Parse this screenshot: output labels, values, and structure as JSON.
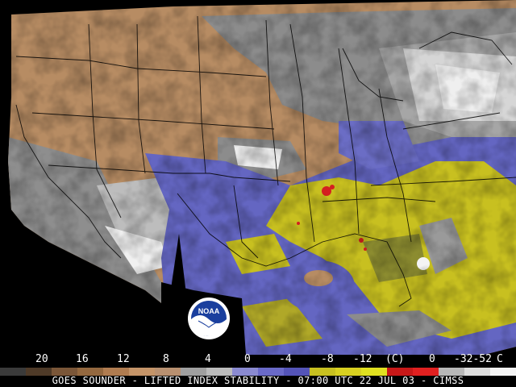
{
  "map": {
    "title": "GOES SOUNDER - LIFTED INDEX STABILITY - 07:00 UTC 22 JUL 03 - CIMSS",
    "logo_text": "NOAA",
    "colors": {
      "stable_tan": "#b78c63",
      "neutral_gray": "#8c8c8c",
      "light_gray": "#c8c8c8",
      "cloud_white": "#f0f0f0",
      "slightly_unstable_blue": "#6466c2",
      "unstable_yellow": "#c8c020",
      "olive": "#8c8c30",
      "very_unstable_red": "#d42020",
      "boundaries": "#000000"
    },
    "legend": {
      "tick_labels": [
        "20",
        "16",
        "12",
        "8",
        "4",
        "0",
        "-4",
        "-8",
        "-12",
        "(C)",
        "0",
        "-32-52",
        "C"
      ],
      "scale_colors": [
        "#3a3a3a",
        "#4e3a28",
        "#7a5638",
        "#94683f",
        "#b07c50",
        "#c49468",
        "#b89070",
        "#a0a0a0",
        "#bcbcbc",
        "#8a8ad0",
        "#6a6ac8",
        "#5454b8",
        "#c8c020",
        "#d8d020",
        "#e0e020",
        "#c81818",
        "#e02020",
        "#b8b8b8",
        "#dcdcdc",
        "#f4f4f4"
      ]
    }
  }
}
